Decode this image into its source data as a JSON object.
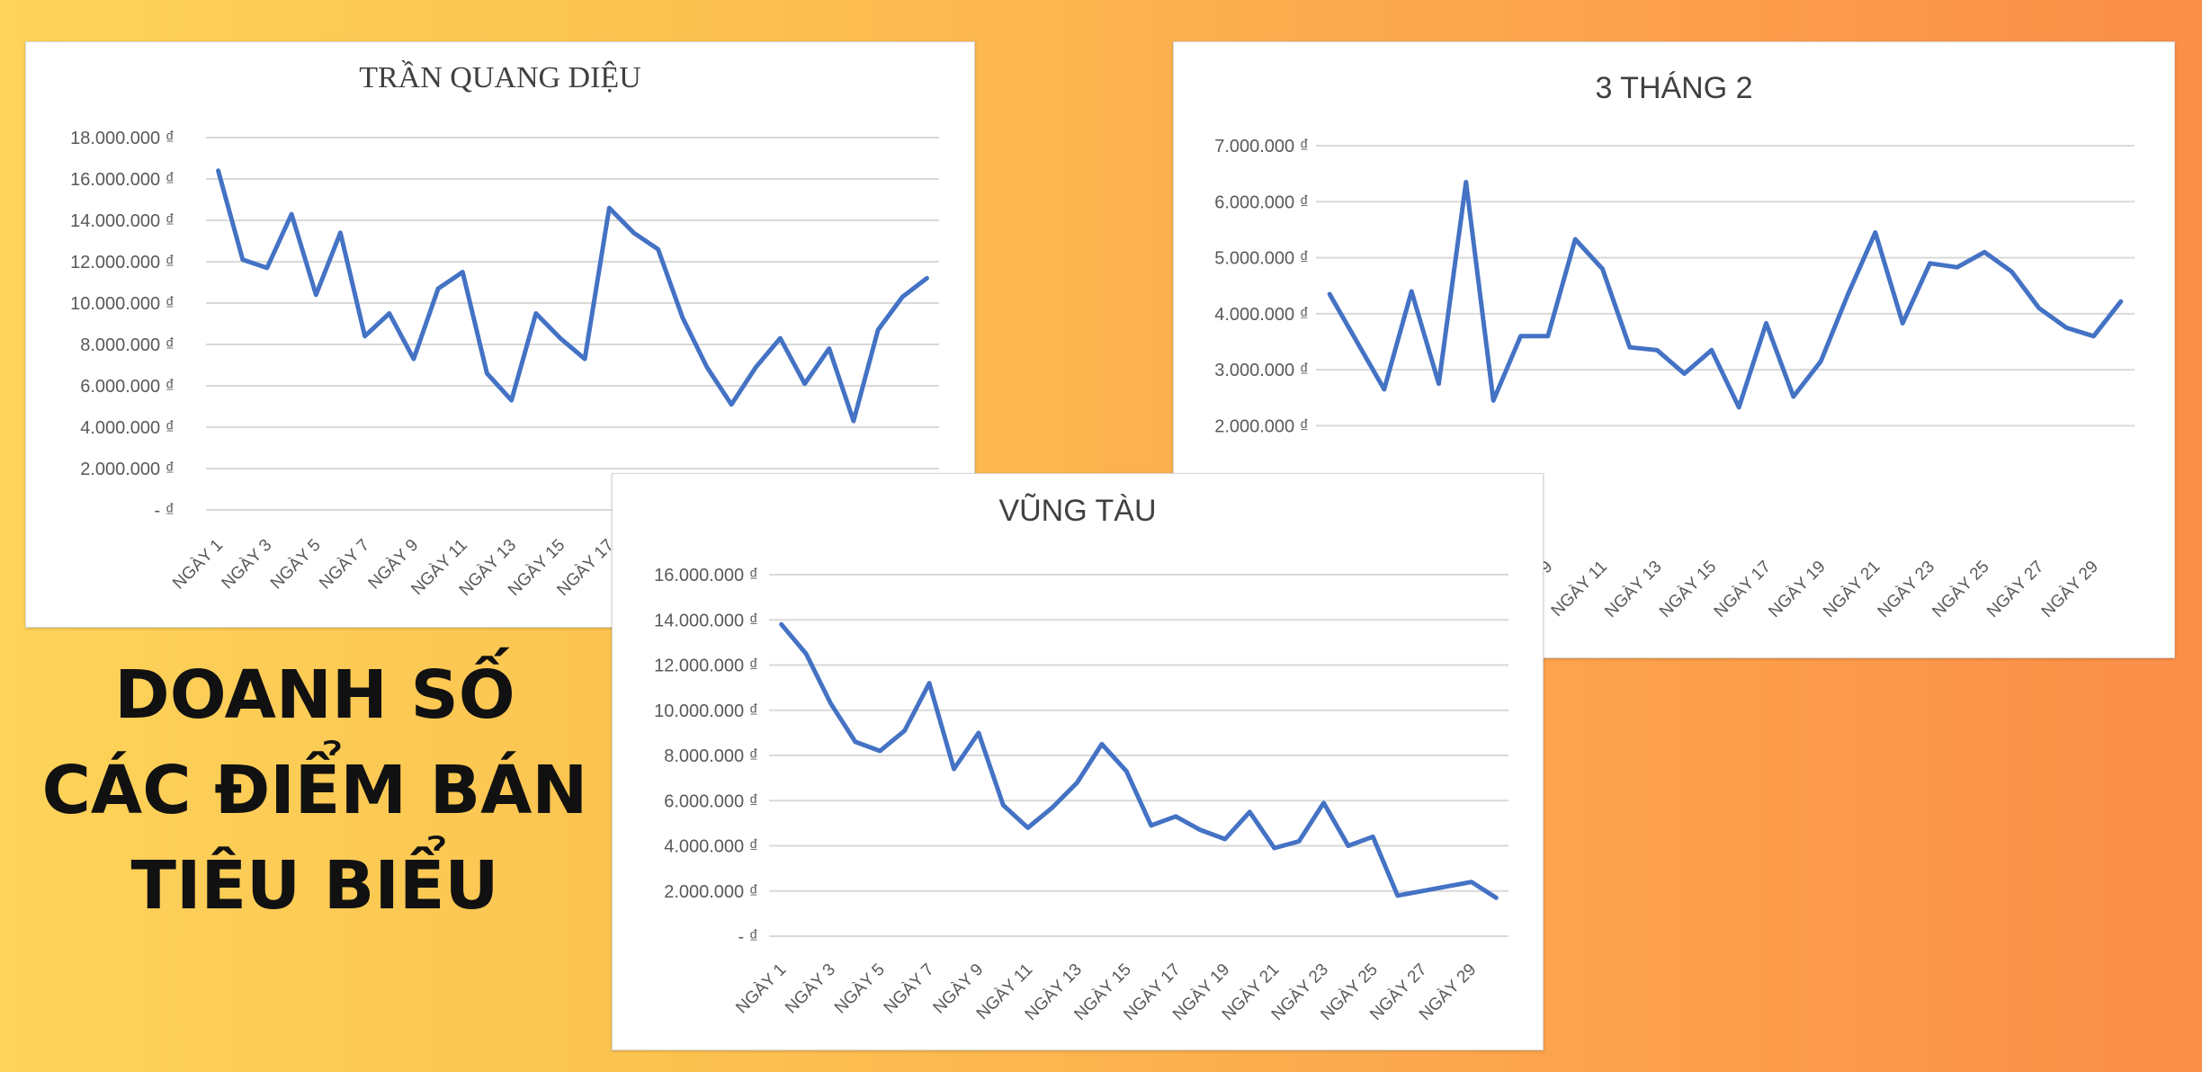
{
  "headline": {
    "line1": "DOANH SỐ",
    "line2": "CÁC ĐIỂM BÁN",
    "line3": "TIÊU BIỂU"
  },
  "colors": {
    "line": "#4472c4",
    "grid": "#d9d9d9",
    "axis_text": "#595959",
    "title": "#404040"
  },
  "chart_data": [
    {
      "type": "line",
      "title": "TRẦN QUANG DIỆU",
      "x_labels": [
        "NGÀY 1",
        "NGÀY 3",
        "NGÀY 5",
        "NGÀY 7",
        "NGÀY 9",
        "NGÀY 11",
        "NGÀY 13",
        "NGÀY 15",
        "NGÀY 17"
      ],
      "y_ticks": [
        "- ₫",
        "2.000.000 ₫",
        "4.000.000 ₫",
        "6.000.000 ₫",
        "8.000.000 ₫",
        "10.000.000 ₫",
        "12.000.000 ₫",
        "14.000.000 ₫",
        "16.000.000 ₫",
        "18.000.000 ₫"
      ],
      "ylim": [
        0,
        18000000
      ],
      "values": [
        16400000,
        12100000,
        11700000,
        14300000,
        10400000,
        13400000,
        8400000,
        9500000,
        7300000,
        10700000,
        11500000,
        6600000,
        5300000,
        9500000,
        8300000,
        7300000,
        14600000,
        13400000,
        12600000,
        9300000,
        6900000,
        5100000,
        6900000,
        8300000,
        6100000,
        7800000,
        4300000,
        8700000,
        10300000,
        11200000
      ]
    },
    {
      "type": "line",
      "title": "3 THÁNG 2",
      "x_labels": [
        "NGÀY 9",
        "NGÀY 11",
        "NGÀY 13",
        "NGÀY 15",
        "NGÀY 17",
        "NGÀY 19",
        "NGÀY 21",
        "NGÀY 23",
        "NGÀY 25",
        "NGÀY 27",
        "NGÀY 29"
      ],
      "y_ticks": [
        "2.000.000 ₫",
        "3.000.000 ₫",
        "4.000.000 ₫",
        "5.000.000 ₫",
        "6.000.000 ₫",
        "7.000.000 ₫"
      ],
      "ylim": [
        0,
        7000000
      ],
      "values": [
        4350000,
        3500000,
        2650000,
        4400000,
        2750000,
        6350000,
        2450000,
        3600000,
        3600000,
        5330000,
        4800000,
        3400000,
        3350000,
        2930000,
        3350000,
        2330000,
        3830000,
        2520000,
        3150000,
        4350000,
        5450000,
        3830000,
        4900000,
        4830000,
        5100000,
        4750000,
        4100000,
        3750000,
        3600000,
        4220000
      ]
    },
    {
      "type": "line",
      "title": "VŨNG TÀU",
      "x_labels": [
        "NGÀY 1",
        "NGÀY 3",
        "NGÀY 5",
        "NGÀY 7",
        "NGÀY 9",
        "NGÀY 11",
        "NGÀY 13",
        "NGÀY 15",
        "NGÀY 17",
        "NGÀY 19",
        "NGÀY 21",
        "NGÀY 23",
        "NGÀY 25",
        "NGÀY 27",
        "NGÀY 29"
      ],
      "y_ticks": [
        "- ₫",
        "2.000.000 ₫",
        "4.000.000 ₫",
        "6.000.000 ₫",
        "8.000.000 ₫",
        "10.000.000 ₫",
        "12.000.000 ₫",
        "14.000.000 ₫",
        "16.000.000 ₫"
      ],
      "ylim": [
        0,
        16000000
      ],
      "values": [
        13800000,
        12500000,
        10300000,
        8600000,
        8200000,
        9100000,
        11200000,
        7400000,
        9000000,
        5800000,
        4800000,
        5700000,
        6800000,
        8500000,
        7300000,
        4900000,
        5300000,
        4700000,
        4300000,
        5500000,
        3900000,
        4200000,
        5900000,
        4000000,
        4400000,
        1800000,
        2000000,
        2200000,
        2400000,
        1700000
      ]
    }
  ]
}
